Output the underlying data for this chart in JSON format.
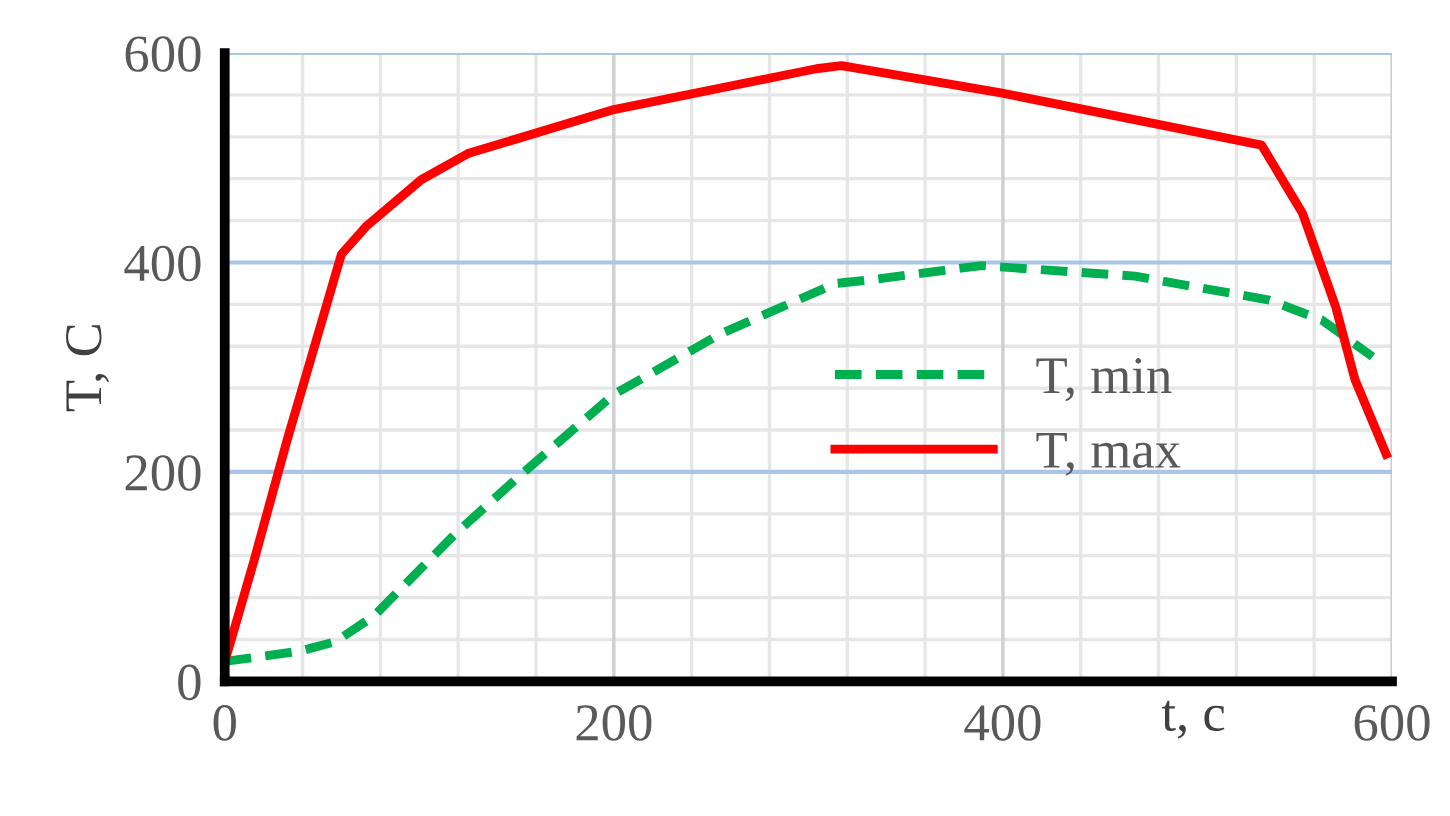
{
  "chart_data": {
    "type": "line",
    "xlabel": "t, c",
    "ylabel": "T, C",
    "xlim": [
      0,
      600
    ],
    "ylim": [
      0,
      600
    ],
    "xticks": [
      0,
      200,
      400,
      600
    ],
    "yticks": [
      0,
      200,
      400,
      600
    ],
    "grid": true,
    "legend": "center right",
    "series": [
      {
        "name": "T, min",
        "color": "#00b050",
        "line_style": "dashed",
        "x": [
          0,
          39,
          57,
          77,
          118,
          152,
          200,
          255,
          314,
          330,
          389,
          468,
          537,
          564,
          590
        ],
        "values": [
          19,
          29,
          38,
          63,
          140,
          197,
          274,
          332,
          380,
          383,
          397,
          387,
          364,
          345,
          310
        ]
      },
      {
        "name": "T, max",
        "color": "#ff0000",
        "line_style": "solid",
        "x": [
          0,
          6,
          15,
          32,
          60,
          73,
          101,
          125,
          200,
          304,
          317,
          399,
          533,
          554,
          571,
          581,
          597
        ],
        "values": [
          19,
          57,
          115,
          230,
          408,
          435,
          479,
          504,
          546,
          585,
          588,
          562,
          512,
          447,
          358,
          288,
          217
        ]
      }
    ]
  }
}
